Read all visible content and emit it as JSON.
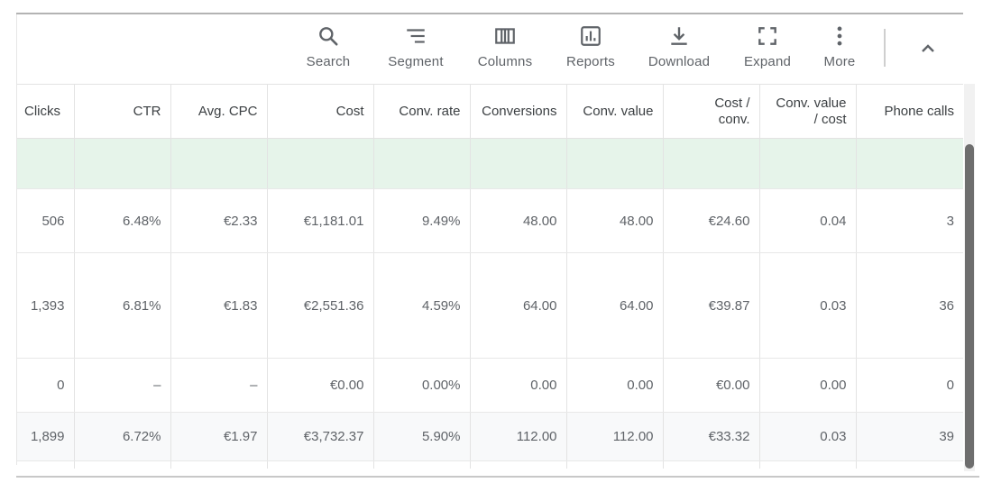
{
  "toolbar": {
    "buttons": [
      {
        "label": "Search",
        "icon": "search-icon"
      },
      {
        "label": "Segment",
        "icon": "segment-icon"
      },
      {
        "label": "Columns",
        "icon": "columns-icon"
      },
      {
        "label": "Reports",
        "icon": "reports-icon"
      },
      {
        "label": "Download",
        "icon": "download-icon"
      },
      {
        "label": "Expand",
        "icon": "expand-icon"
      },
      {
        "label": "More",
        "icon": "more-vert-icon"
      }
    ],
    "collapse_icon": "chevron-up-icon"
  },
  "table": {
    "headers": [
      "Clicks",
      "CTR",
      "Avg. CPC",
      "Cost",
      "Conv. rate",
      "Conversions",
      "Conv. value",
      "Cost /\nconv.",
      "Conv. value\n/ cost",
      "Phone calls"
    ],
    "rows": [
      [
        "506",
        "6.48%",
        "€2.33",
        "€1,181.01",
        "9.49%",
        "48.00",
        "48.00",
        "€24.60",
        "0.04",
        "3"
      ],
      [
        "1,393",
        "6.81%",
        "€1.83",
        "€2,551.36",
        "4.59%",
        "64.00",
        "64.00",
        "€39.87",
        "0.03",
        "36"
      ],
      [
        "0",
        "–",
        "–",
        "€0.00",
        "0.00%",
        "0.00",
        "0.00",
        "€0.00",
        "0.00",
        "0"
      ]
    ],
    "total": [
      "1,899",
      "6.72%",
      "€1.97",
      "€3,732.37",
      "5.90%",
      "112.00",
      "112.00",
      "€33.32",
      "0.03",
      "39"
    ]
  },
  "colors": {
    "highlight_row": "#e6f4ea",
    "icon": "#5f6368",
    "scroll_thumb": "#6e6e6e"
  }
}
